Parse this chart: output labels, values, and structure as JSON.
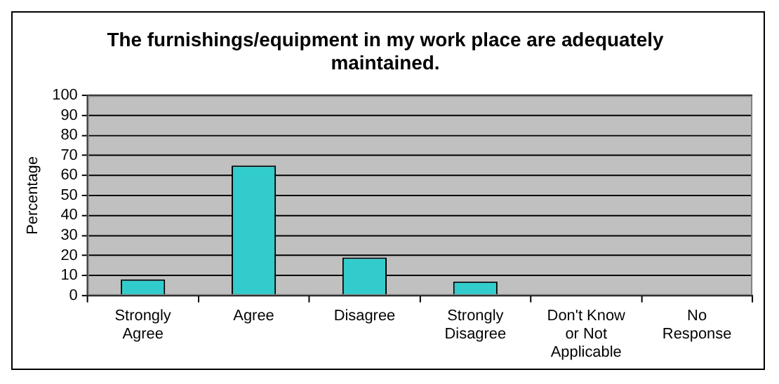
{
  "chart_data": {
    "type": "bar",
    "title": "The furnishings/equipment in my work place are adequately maintained.",
    "ylabel": "Percentage",
    "categories": [
      "Strongly Agree",
      "Agree",
      "Disagree",
      "Strongly Disagree",
      "Don't Know or Not Applicable",
      "No Response"
    ],
    "values": [
      8,
      65,
      19,
      7,
      0,
      0
    ],
    "color": "#33cccc",
    "ylim": [
      0,
      100
    ],
    "yticks": [
      0,
      10,
      20,
      30,
      40,
      50,
      60,
      70,
      80,
      90,
      100
    ],
    "grid": "y",
    "legend": false
  }
}
